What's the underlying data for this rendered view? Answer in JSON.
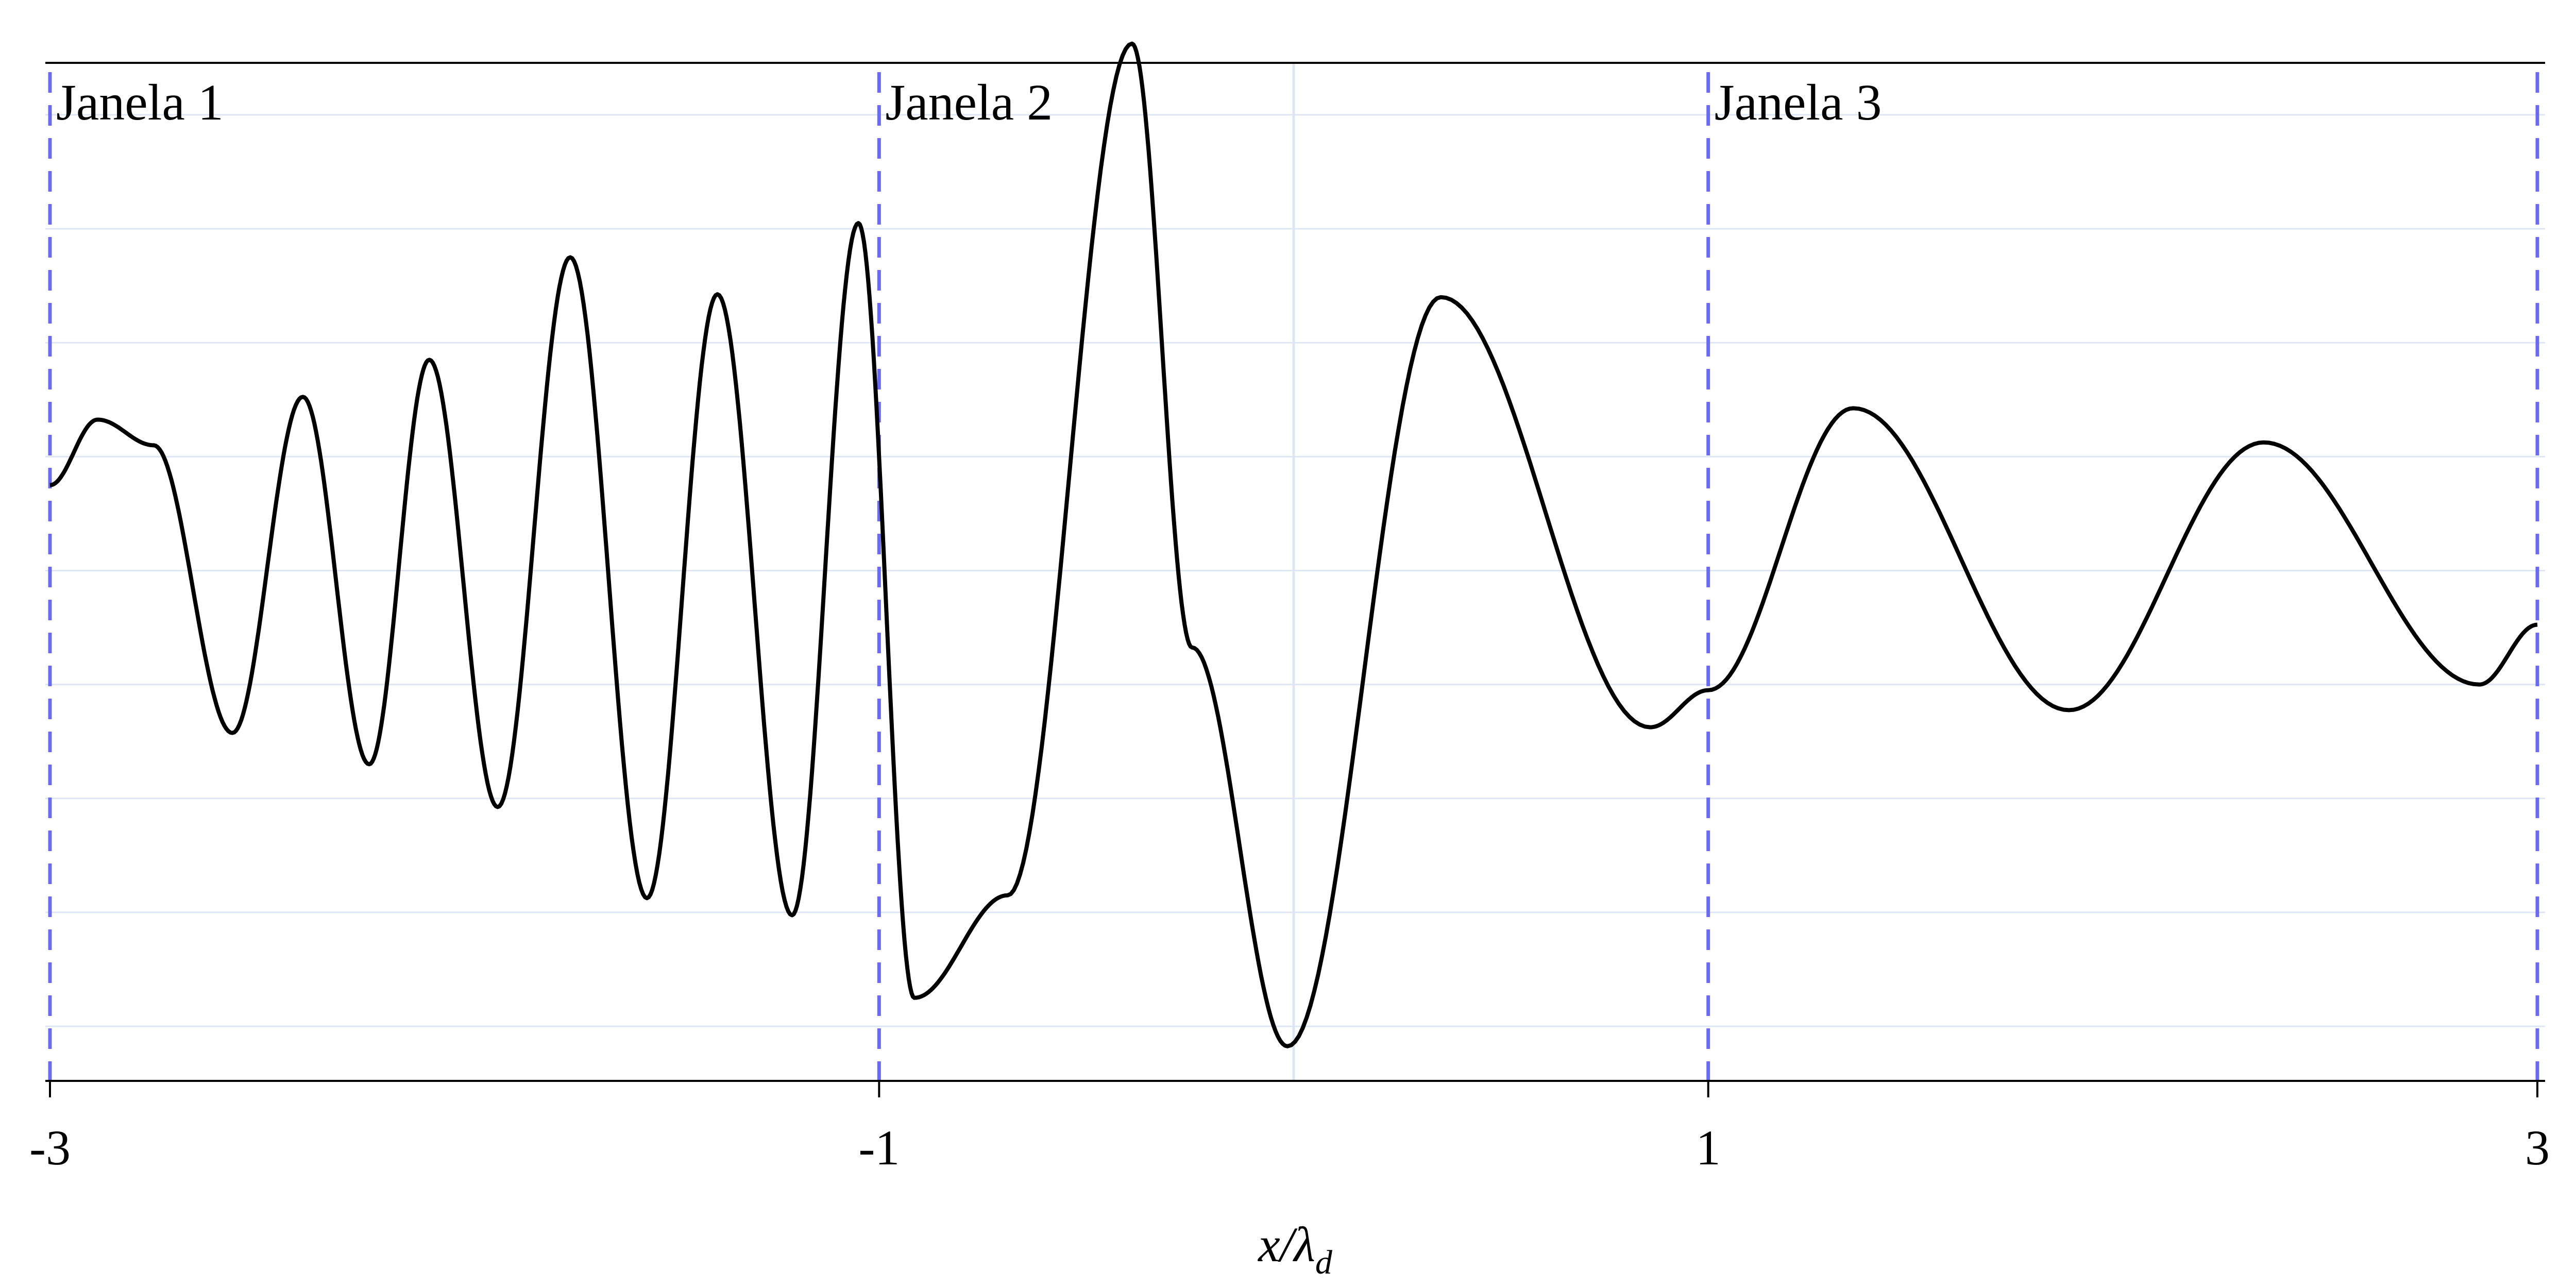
{
  "chart_data": {
    "type": "line",
    "title": "",
    "xlabel": "x/λ",
    "xlabel_subscript": "d",
    "ylabel": "",
    "xlim": [
      -3,
      3
    ],
    "ylim": [
      -1.75,
      1.75
    ],
    "x_ticks": [
      {
        "value": -3,
        "label": "-3"
      },
      {
        "value": -1,
        "label": "-1"
      },
      {
        "value": 1,
        "label": "1"
      },
      {
        "value": 3,
        "label": "3"
      }
    ],
    "grid": {
      "horizontal": true,
      "y_values": [
        -1.6,
        -1.2,
        -0.8,
        -0.4,
        0,
        0.4,
        0.8,
        1.2,
        1.6
      ],
      "vertical_at": [
        0
      ]
    },
    "windows": [
      {
        "label": "Janela 1",
        "x_start": -3,
        "x_end": -1
      },
      {
        "label": "Janela 2",
        "x_start": -1,
        "x_end": 1
      },
      {
        "label": "Janela 3",
        "x_start": 1,
        "x_end": 3
      }
    ],
    "window_boundaries": [
      -3,
      -1,
      1,
      3
    ],
    "series": [
      {
        "line_color": "#000000",
        "x": [
          -3.0,
          -2.885,
          -2.75,
          -2.56,
          -2.39,
          -2.23,
          -2.085,
          -1.92,
          -1.745,
          -1.56,
          -1.39,
          -1.21,
          -1.05,
          -0.915,
          -0.69,
          -0.39,
          -0.245,
          -0.015,
          0.355,
          0.86,
          1.0,
          1.35,
          1.87,
          2.34,
          2.86,
          3.0
        ],
        "y": [
          0.3,
          0.53,
          0.44,
          -0.57,
          0.61,
          -0.68,
          0.74,
          -0.83,
          1.1,
          -1.15,
          0.97,
          -1.21,
          1.22,
          -1.5,
          -1.14,
          1.85,
          -0.27,
          -1.67,
          0.96,
          -0.55,
          -0.42,
          0.57,
          -0.49,
          0.45,
          -0.4,
          -0.19
        ]
      }
    ]
  }
}
